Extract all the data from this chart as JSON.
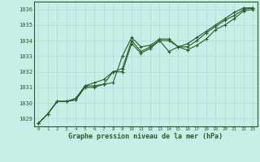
{
  "title": "Graphe pression niveau de la mer (hPa)",
  "bg_color": "#c8eee8",
  "grid_color": "#b8ddd8",
  "line_color": "#2d5a27",
  "xlim": [
    -0.5,
    23.5
  ],
  "ylim": [
    1028.5,
    1036.5
  ],
  "yticks": [
    1029,
    1030,
    1031,
    1032,
    1033,
    1034,
    1035,
    1036
  ],
  "xticks": [
    0,
    1,
    2,
    3,
    4,
    5,
    6,
    7,
    8,
    9,
    10,
    11,
    12,
    13,
    14,
    15,
    16,
    17,
    18,
    19,
    20,
    21,
    22,
    23
  ],
  "series": [
    [
      1028.7,
      1029.3,
      1030.1,
      1030.1,
      1030.2,
      1031.1,
      1031.1,
      1031.2,
      1031.3,
      1033.0,
      1034.2,
      1033.6,
      1033.7,
      1034.1,
      1034.1,
      1033.6,
      1033.4,
      1033.7,
      1034.1,
      1034.7,
      1035.0,
      1035.4,
      1035.9,
      1036.0
    ],
    [
      1028.7,
      1029.3,
      1030.1,
      1030.1,
      1030.3,
      1031.1,
      1031.3,
      1031.5,
      1032.0,
      1032.0,
      1033.8,
      1033.2,
      1033.5,
      1034.0,
      1033.3,
      1033.6,
      1033.8,
      1034.2,
      1034.6,
      1035.0,
      1035.4,
      1035.8,
      1036.1,
      1036.1
    ],
    [
      1028.7,
      1029.3,
      1030.1,
      1030.1,
      1030.2,
      1031.0,
      1031.0,
      1031.2,
      1032.0,
      1032.2,
      1034.0,
      1033.3,
      1033.6,
      1034.0,
      1034.0,
      1033.6,
      1033.6,
      1034.0,
      1034.5,
      1034.9,
      1035.3,
      1035.6,
      1036.0,
      1036.1
    ]
  ],
  "ytick_fontsize": 5.0,
  "xtick_fontsize": 4.2,
  "xlabel_fontsize": 6.0
}
